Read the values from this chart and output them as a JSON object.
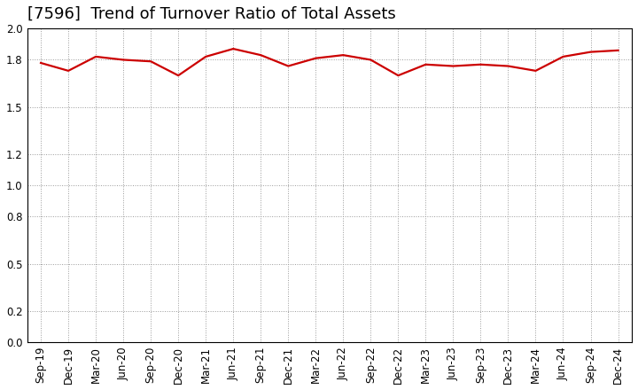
{
  "title": "[7596]  Trend of Turnover Ratio of Total Assets",
  "x_labels": [
    "Sep-19",
    "Dec-19",
    "Mar-20",
    "Jun-20",
    "Sep-20",
    "Dec-20",
    "Mar-21",
    "Jun-21",
    "Sep-21",
    "Dec-21",
    "Mar-22",
    "Jun-22",
    "Sep-22",
    "Dec-22",
    "Mar-23",
    "Jun-23",
    "Sep-23",
    "Dec-23",
    "Mar-24",
    "Jun-24",
    "Sep-24",
    "Dec-24"
  ],
  "y_values": [
    1.78,
    1.73,
    1.82,
    1.8,
    1.79,
    1.7,
    1.82,
    1.87,
    1.83,
    1.76,
    1.81,
    1.83,
    1.8,
    1.7,
    1.77,
    1.76,
    1.77,
    1.76,
    1.73,
    1.82,
    1.85,
    1.86
  ],
  "ylim": [
    0.0,
    2.0
  ],
  "yticks": [
    0.0,
    0.2,
    0.5,
    0.8,
    1.0,
    1.2,
    1.5,
    1.8,
    2.0
  ],
  "line_color": "#cc0000",
  "line_width": 1.6,
  "bg_color": "#ffffff",
  "grid_color": "#999999",
  "title_fontsize": 13,
  "tick_fontsize": 8.5
}
